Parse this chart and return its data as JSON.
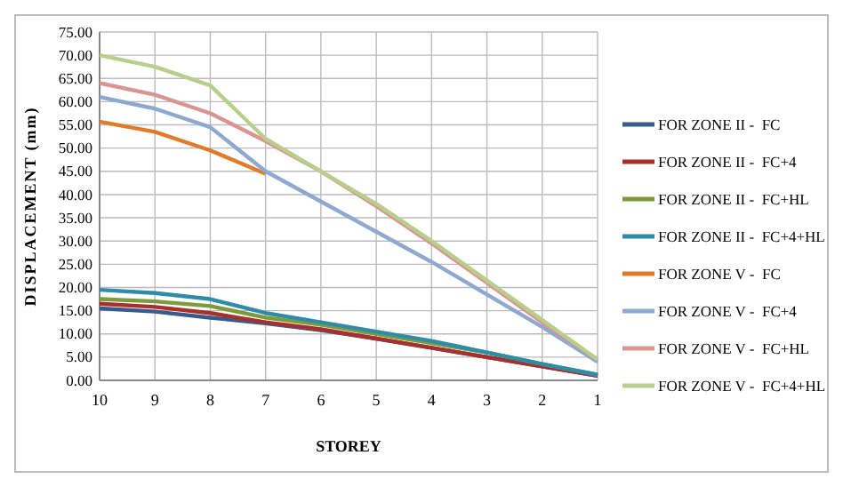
{
  "chart_data": {
    "type": "line",
    "xlabel": "STOREY",
    "ylabel": "DISPLACEMENT (mm)",
    "categories": [
      "10",
      "9",
      "8",
      "7",
      "6",
      "5",
      "4",
      "3",
      "2",
      "1"
    ],
    "ylim": [
      0,
      75
    ],
    "yticks": [
      {
        "value": 0,
        "label": "0.00"
      },
      {
        "value": 5,
        "label": "5.00"
      },
      {
        "value": 10,
        "label": "10.00"
      },
      {
        "value": 15,
        "label": "15.00"
      },
      {
        "value": 20,
        "label": "20.00"
      },
      {
        "value": 25,
        "label": "25.00"
      },
      {
        "value": 30,
        "label": "30.00"
      },
      {
        "value": 35,
        "label": "35.00"
      },
      {
        "value": 40,
        "label": "40.00"
      },
      {
        "value": 45,
        "label": "45.00"
      },
      {
        "value": 50,
        "label": "50.00"
      },
      {
        "value": 55,
        "label": "55.00"
      },
      {
        "value": 60,
        "label": "60.00"
      },
      {
        "value": 65,
        "label": "65.00"
      },
      {
        "value": 70,
        "label": "70.00"
      },
      {
        "value": 75,
        "label": "75.00"
      }
    ],
    "grid": true,
    "legend": "right",
    "marker": "none",
    "series": [
      {
        "name": "FOR ZONE II -  FC",
        "color": "#3a5a8c",
        "values": [
          15.5,
          14.8,
          13.5,
          12.3,
          10.8,
          9,
          7,
          5,
          3,
          1
        ]
      },
      {
        "name": "FOR ZONE II -  FC+4",
        "color": "#a8302c",
        "values": [
          16.5,
          15.8,
          14.5,
          12.5,
          11,
          9,
          7,
          5,
          3,
          1
        ]
      },
      {
        "name": "FOR ZONE II -  FC+HL",
        "color": "#7f9a3c",
        "values": [
          17.5,
          17,
          16,
          13.5,
          12,
          10,
          8,
          6,
          3.5,
          1.2
        ]
      },
      {
        "name": "FOR ZONE II -  FC+4+HL",
        "color": "#2e8ca8",
        "values": [
          19.5,
          18.8,
          17.5,
          14.5,
          12.5,
          10.5,
          8.5,
          6,
          3.5,
          1.2
        ]
      },
      {
        "name": "FOR ZONE V -  FC",
        "color": "#e07b2a",
        "values": [
          55.7,
          53.5,
          49.5,
          44.5,
          null,
          null,
          null,
          null,
          null,
          null
        ]
      },
      {
        "name": "FOR ZONE V -  FC+4",
        "color": "#8fa8d0",
        "values": [
          61,
          58.5,
          54.5,
          45,
          38.5,
          32,
          25.5,
          18.5,
          11.5,
          4
        ]
      },
      {
        "name": "FOR ZONE V -  FC+HL",
        "color": "#d99594",
        "values": [
          64,
          61.5,
          57.5,
          51.5,
          45,
          37.5,
          29.5,
          21,
          12.5,
          4.5
        ]
      },
      {
        "name": "FOR ZONE V -  FC+4+HL",
        "color": "#b8cf8c",
        "values": [
          70,
          67.5,
          63.5,
          52,
          45,
          38,
          30,
          21.5,
          13,
          4.5
        ]
      }
    ]
  }
}
